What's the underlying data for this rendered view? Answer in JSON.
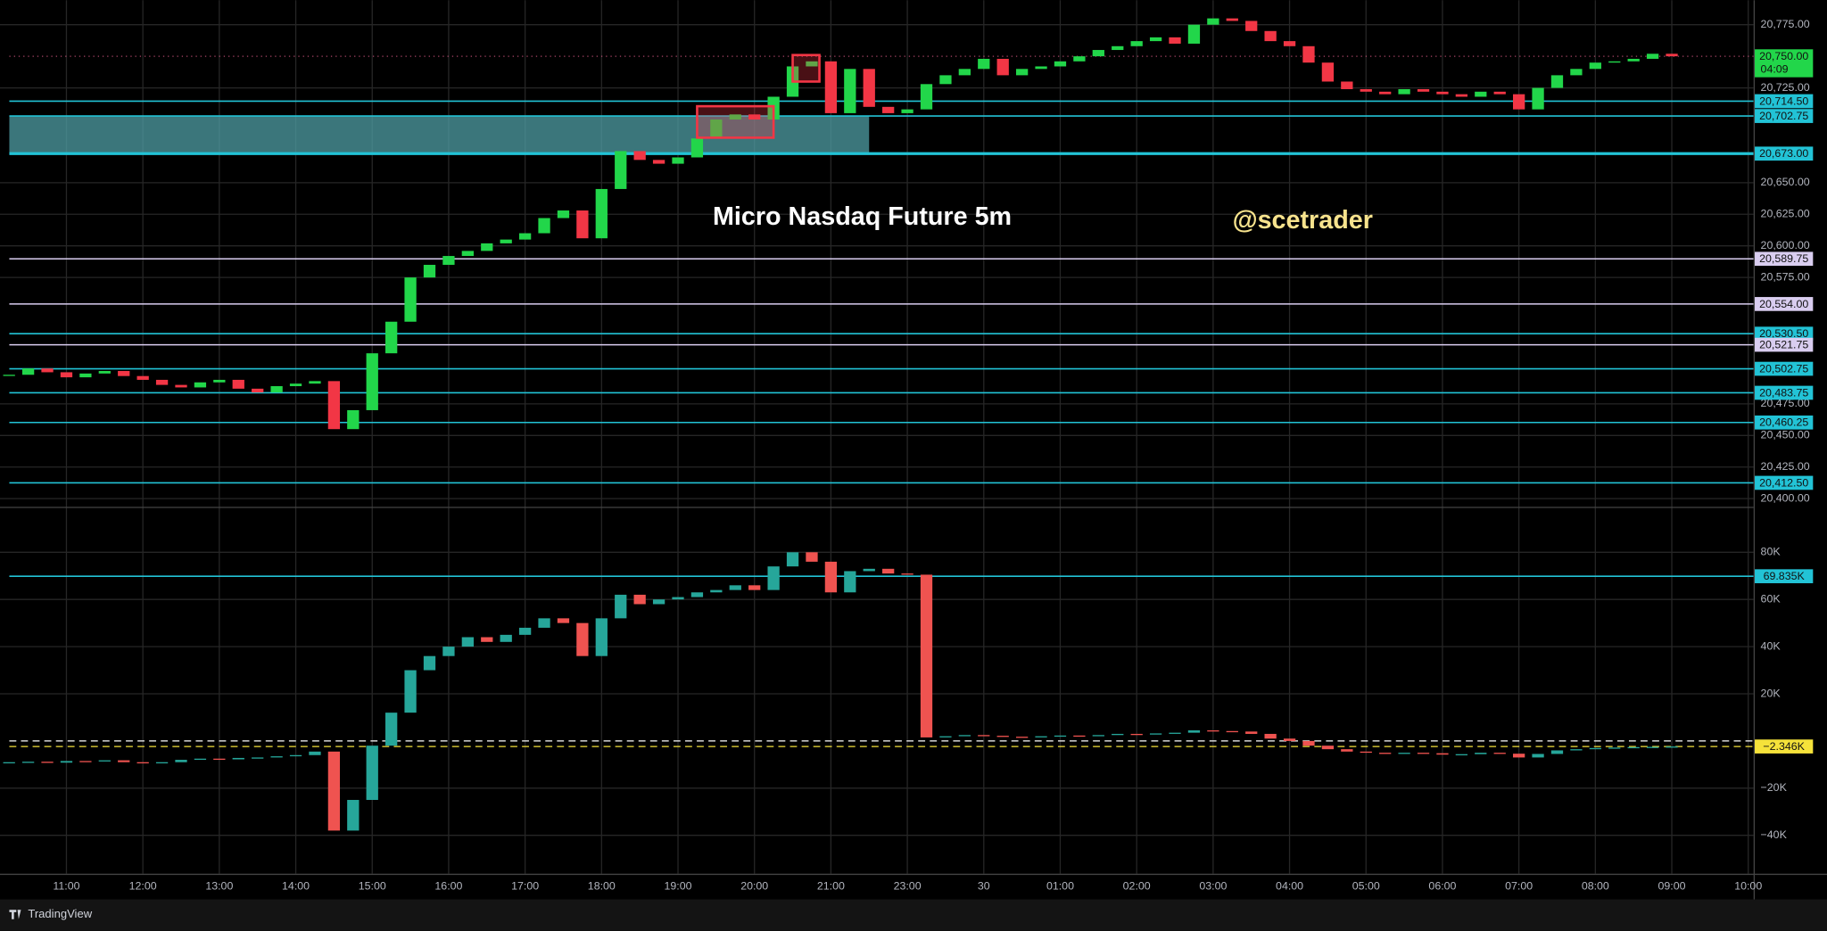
{
  "chart_data": {
    "type": "candlestick",
    "title": "Micro Nasdaq Future 5m",
    "watermark": "@scetrader",
    "brand": "TradingView",
    "grid": true,
    "x": [
      0.25,
      0.5,
      0.75,
      1,
      1.25,
      1.5,
      1.75,
      2,
      2.25,
      2.5,
      2.75,
      3,
      3.25,
      3.5,
      3.75,
      4,
      4.25,
      4.5,
      4.75,
      5,
      5.25,
      5.5,
      5.75,
      6,
      6.25,
      6.5,
      6.75,
      7,
      7.25,
      7.5,
      7.75,
      8,
      8.25,
      8.5,
      8.75,
      9,
      9.25,
      9.5,
      9.75,
      10,
      10.25,
      10.5,
      10.75,
      11,
      11.25,
      11.5,
      11.75,
      12,
      12.25,
      12.5,
      12.75,
      13,
      13.25,
      13.5,
      13.75,
      14,
      14.25,
      14.5,
      14.75,
      15,
      15.25,
      15.5,
      15.75,
      16,
      16.25,
      16.5,
      16.75,
      17,
      17.25,
      17.5,
      17.75,
      18,
      18.25,
      18.5,
      18.75,
      19,
      19.25,
      19.5,
      19.75,
      20,
      20.25,
      20.5,
      20.75,
      21,
      21.25,
      21.5,
      21.75,
      22
    ],
    "xlim": [
      0.253,
      23.07
    ],
    "xticks": [
      {
        "value": 1,
        "label": "11:00"
      },
      {
        "value": 2,
        "label": "12:00"
      },
      {
        "value": 3,
        "label": "13:00"
      },
      {
        "value": 4,
        "label": "14:00"
      },
      {
        "value": 5,
        "label": "15:00"
      },
      {
        "value": 6,
        "label": "16:00"
      },
      {
        "value": 7,
        "label": "17:00"
      },
      {
        "value": 8,
        "label": "18:00"
      },
      {
        "value": 9,
        "label": "19:00"
      },
      {
        "value": 10,
        "label": "20:00"
      },
      {
        "value": 11,
        "label": "21:00"
      },
      {
        "value": 12,
        "label": "23:00"
      },
      {
        "value": 13,
        "label": "30"
      },
      {
        "value": 14,
        "label": "01:00"
      },
      {
        "value": 15,
        "label": "02:00"
      },
      {
        "value": 16,
        "label": "03:00"
      },
      {
        "value": 17,
        "label": "04:00"
      },
      {
        "value": 18,
        "label": "05:00"
      },
      {
        "value": 19,
        "label": "06:00"
      },
      {
        "value": 20,
        "label": "07:00"
      },
      {
        "value": 21,
        "label": "08:00"
      },
      {
        "value": 22,
        "label": "09:00"
      },
      {
        "value": 23,
        "label": "10:00"
      }
    ],
    "up_color": "#22d64a",
    "down_color": "#f23645",
    "price": {
      "closes": [
        20498,
        20503,
        20500,
        20496,
        20499,
        20501,
        20497,
        20494,
        20490,
        20488,
        20492,
        20494,
        20487,
        20484,
        20489,
        20491,
        20493,
        20455,
        20470,
        20515,
        20540,
        20575,
        20585,
        20592,
        20596,
        20602,
        20605,
        20610,
        20622,
        20628,
        20606,
        20645,
        20675,
        20668,
        20665,
        20670,
        20685,
        20700,
        20704,
        20700,
        20718,
        20742,
        20746,
        20705,
        20740,
        20710,
        20705,
        20708,
        20728,
        20735,
        20740,
        20748,
        20735,
        20740,
        20742,
        20746,
        20750,
        20755,
        20758,
        20762,
        20765,
        20760,
        20775,
        20780,
        20778,
        20770,
        20762,
        20758,
        20745,
        20730,
        20724,
        20722,
        20720,
        20724,
        20722,
        20720,
        20718,
        20722,
        20720,
        20708,
        20725,
        20735,
        20740,
        20745,
        20746,
        20748,
        20752,
        20750
      ],
      "ylim": [
        20393.5,
        20794.4
      ],
      "yticks": [
        {
          "value": 20775,
          "label": "20,775.00"
        },
        {
          "value": 20725,
          "label": "20,725.00"
        },
        {
          "value": 20650,
          "label": "20,650.00"
        },
        {
          "value": 20625,
          "label": "20,625.00"
        },
        {
          "value": 20600,
          "label": "20,600.00"
        },
        {
          "value": 20575,
          "label": "20,575.00"
        },
        {
          "value": 20475,
          "label": "20,475.00"
        },
        {
          "value": 20450,
          "label": "20,450.00"
        },
        {
          "value": 20425,
          "label": "20,425.00"
        },
        {
          "value": 20400,
          "label": "20,400.00"
        }
      ],
      "levels": [
        {
          "value": 20714.5,
          "label": "20,714.50",
          "color": "#22c3d6"
        },
        {
          "value": 20702.75,
          "label": "20,702.75",
          "color": "#22c3d6"
        },
        {
          "value": 20673,
          "label": "20,673.00",
          "color": "#22c3d6"
        },
        {
          "value": 20589.75,
          "label": "20,589.75",
          "color": "#d9cdf0"
        },
        {
          "value": 20554,
          "label": "20,554.00",
          "color": "#d9cdf0"
        },
        {
          "value": 20530.5,
          "label": "20,530.50",
          "color": "#22c3d6"
        },
        {
          "value": 20521.75,
          "label": "20,521.75",
          "color": "#d9cdf0"
        },
        {
          "value": 20502.75,
          "label": "20,502.75",
          "color": "#22c3d6"
        },
        {
          "value": 20483.75,
          "label": "20,483.75",
          "color": "#22c3d6"
        },
        {
          "value": 20460.25,
          "label": "20,460.25",
          "color": "#22c3d6"
        },
        {
          "value": 20412.5,
          "label": "20,412.50",
          "color": "#22c3d6"
        }
      ],
      "last": {
        "value": 20750,
        "label": "20,750.00",
        "countdown": "04:09",
        "color": "#22d64a"
      }
    },
    "zone": {
      "bottom": 20673,
      "top": 20702.75,
      "end": 11.5,
      "color": "#4f9ea4"
    },
    "boxes": [
      {
        "start": 9.25,
        "end": 10.25,
        "top": 20710.5,
        "bottom": 20685.6,
        "color": "#f23645"
      },
      {
        "start": 10.5,
        "end": 10.85,
        "top": 20751,
        "bottom": 20730,
        "color": "#f23645"
      }
    ],
    "delta": {
      "values": [
        -9000,
        -8800,
        -9200,
        -8500,
        -8700,
        -8200,
        -9000,
        -9500,
        -9000,
        -8000,
        -7500,
        -7800,
        -7200,
        -7000,
        -6500,
        -6000,
        -4500,
        -38000,
        -25000,
        -2000,
        12000,
        30000,
        36000,
        40000,
        44000,
        42000,
        45000,
        48000,
        52000,
        50000,
        36000,
        52000,
        62000,
        58000,
        60000,
        61000,
        63000,
        64000,
        66000,
        64000,
        74000,
        80000,
        76000,
        63000,
        72000,
        73000,
        71000,
        70500,
        1500,
        2000,
        2500,
        2200,
        1800,
        1500,
        2000,
        2300,
        2000,
        2500,
        3000,
        2800,
        3200,
        3500,
        4500,
        4200,
        4000,
        3000,
        1000,
        0,
        -2000,
        -3500,
        -4500,
        -5000,
        -5500,
        -5000,
        -5200,
        -5800,
        -5600,
        -5000,
        -5400,
        -7000,
        -5500,
        -4000,
        -3500,
        -3000,
        -2800,
        -2600,
        -2500,
        -2346
      ],
      "ylim": [
        -56300,
        99260
      ],
      "yticks": [
        {
          "value": 80000,
          "label": "80K"
        },
        {
          "value": 60000,
          "label": "60K"
        },
        {
          "value": 40000,
          "label": "40K"
        },
        {
          "value": 20000,
          "label": "20K"
        },
        {
          "value": -20000,
          "label": "−20K"
        },
        {
          "value": -40000,
          "label": "−40K"
        }
      ],
      "up_color": "#26a69a",
      "down_color": "#ef5350",
      "baseline": 0,
      "levels": [
        {
          "value": 69835,
          "label": "69.835K",
          "color": "#22c3d6"
        }
      ],
      "last": {
        "value": -2346,
        "label": "−2.346K",
        "color": "#f5e23a"
      }
    }
  }
}
